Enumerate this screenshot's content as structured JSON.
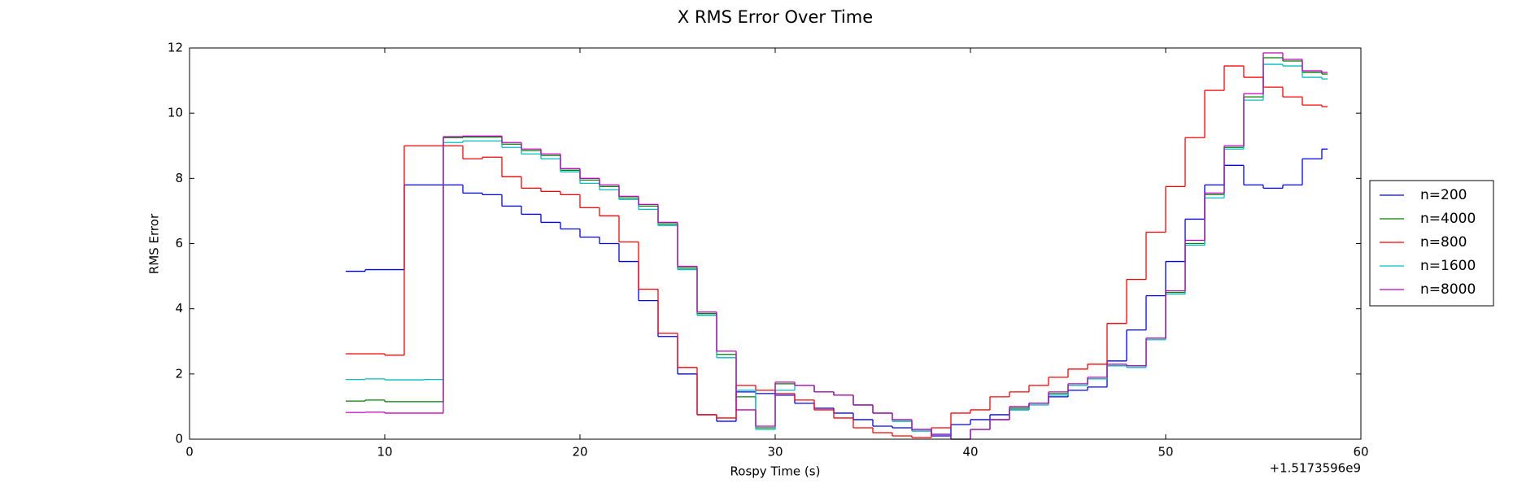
{
  "chart_data": {
    "type": "step",
    "title": "X RMS Error Over Time",
    "x_label": "Rospy Time (s)",
    "y_label": "RMS Error",
    "x_offset_label": "+1.5173596e9",
    "x": [
      8,
      9,
      10,
      11,
      12,
      13,
      14,
      15,
      16,
      17,
      18,
      19,
      20,
      21,
      22,
      23,
      24,
      25,
      26,
      27,
      28,
      29,
      30,
      31,
      32,
      33,
      34,
      35,
      36,
      37,
      38,
      39,
      40,
      41,
      42,
      43,
      44,
      45,
      46,
      47,
      48,
      49,
      50,
      51,
      52,
      53,
      54,
      55,
      56,
      57,
      58
    ],
    "series": [
      {
        "name": "n=200",
        "color": "#0000ff",
        "values": [
          5.15,
          5.2,
          5.2,
          7.8,
          7.8,
          7.8,
          7.55,
          7.5,
          7.15,
          6.9,
          6.65,
          6.45,
          6.2,
          6.0,
          5.45,
          4.25,
          3.15,
          2.0,
          0.75,
          0.55,
          1.45,
          1.4,
          1.35,
          1.1,
          0.95,
          0.8,
          0.6,
          0.4,
          0.35,
          0.3,
          0.1,
          0.45,
          0.6,
          0.75,
          0.9,
          1.1,
          1.3,
          1.5,
          1.6,
          2.4,
          3.35,
          4.4,
          5.45,
          6.75,
          7.8,
          8.4,
          7.8,
          7.7,
          7.8,
          8.6,
          8.9
        ]
      },
      {
        "name": "n=4000",
        "color": "#008000",
        "values": [
          1.17,
          1.2,
          1.15,
          1.15,
          1.15,
          9.25,
          9.27,
          9.27,
          9.05,
          8.85,
          8.7,
          8.25,
          7.95,
          7.75,
          7.4,
          7.15,
          6.6,
          5.25,
          3.85,
          2.6,
          1.3,
          0.35,
          1.7,
          1.65,
          1.45,
          1.35,
          1.05,
          0.8,
          0.55,
          0.25,
          0.15,
          0.0,
          0.3,
          0.6,
          0.95,
          1.1,
          1.4,
          1.65,
          1.85,
          2.25,
          2.25,
          3.1,
          4.5,
          6.0,
          7.5,
          8.95,
          10.5,
          11.7,
          11.6,
          11.25,
          11.2
        ]
      },
      {
        "name": "n=800",
        "color": "#ff0000",
        "values": [
          2.62,
          2.62,
          2.58,
          9.0,
          9.0,
          9.0,
          8.6,
          8.65,
          8.05,
          7.7,
          7.6,
          7.5,
          7.1,
          6.85,
          6.05,
          4.6,
          3.25,
          2.2,
          0.75,
          0.65,
          1.65,
          1.5,
          1.4,
          1.2,
          0.9,
          0.65,
          0.35,
          0.2,
          0.1,
          0.05,
          0.35,
          0.8,
          0.9,
          1.3,
          1.45,
          1.65,
          1.9,
          2.15,
          2.3,
          3.55,
          4.9,
          6.35,
          7.75,
          9.25,
          10.7,
          11.45,
          11.1,
          10.8,
          10.5,
          10.25,
          10.2
        ]
      },
      {
        "name": "n=1600",
        "color": "#00bfbf",
        "values": [
          1.83,
          1.85,
          1.82,
          1.82,
          1.83,
          9.1,
          9.15,
          9.15,
          8.95,
          8.75,
          8.6,
          8.2,
          7.85,
          7.65,
          7.35,
          7.05,
          6.55,
          5.2,
          3.8,
          2.5,
          1.5,
          0.3,
          1.5,
          1.65,
          1.45,
          1.35,
          1.05,
          0.8,
          0.55,
          0.25,
          0.15,
          0.0,
          0.3,
          0.6,
          0.9,
          1.05,
          1.35,
          1.65,
          1.85,
          2.25,
          2.2,
          3.05,
          4.45,
          5.95,
          7.4,
          8.9,
          10.4,
          11.5,
          11.45,
          11.1,
          11.05
        ]
      },
      {
        "name": "n=8000",
        "color": "#bf00bf",
        "values": [
          0.82,
          0.83,
          0.8,
          0.8,
          0.8,
          9.28,
          9.3,
          9.3,
          9.1,
          8.9,
          8.75,
          8.3,
          8.0,
          7.8,
          7.45,
          7.2,
          6.65,
          5.3,
          3.9,
          2.7,
          0.9,
          0.4,
          1.75,
          1.65,
          1.45,
          1.35,
          1.05,
          0.8,
          0.6,
          0.3,
          0.15,
          0.0,
          0.3,
          0.6,
          1.0,
          1.1,
          1.45,
          1.7,
          1.9,
          2.3,
          2.25,
          3.1,
          4.55,
          6.1,
          7.55,
          9.0,
          10.6,
          11.85,
          11.65,
          11.3,
          11.25
        ]
      }
    ],
    "xlim": [
      0,
      60
    ],
    "xticks": [
      0,
      10,
      20,
      30,
      40,
      50,
      60
    ],
    "ylim": [
      0,
      12
    ],
    "yticks": [
      0,
      2,
      4,
      6,
      8,
      10,
      12
    ],
    "grid": false,
    "legend_loc": "right"
  }
}
